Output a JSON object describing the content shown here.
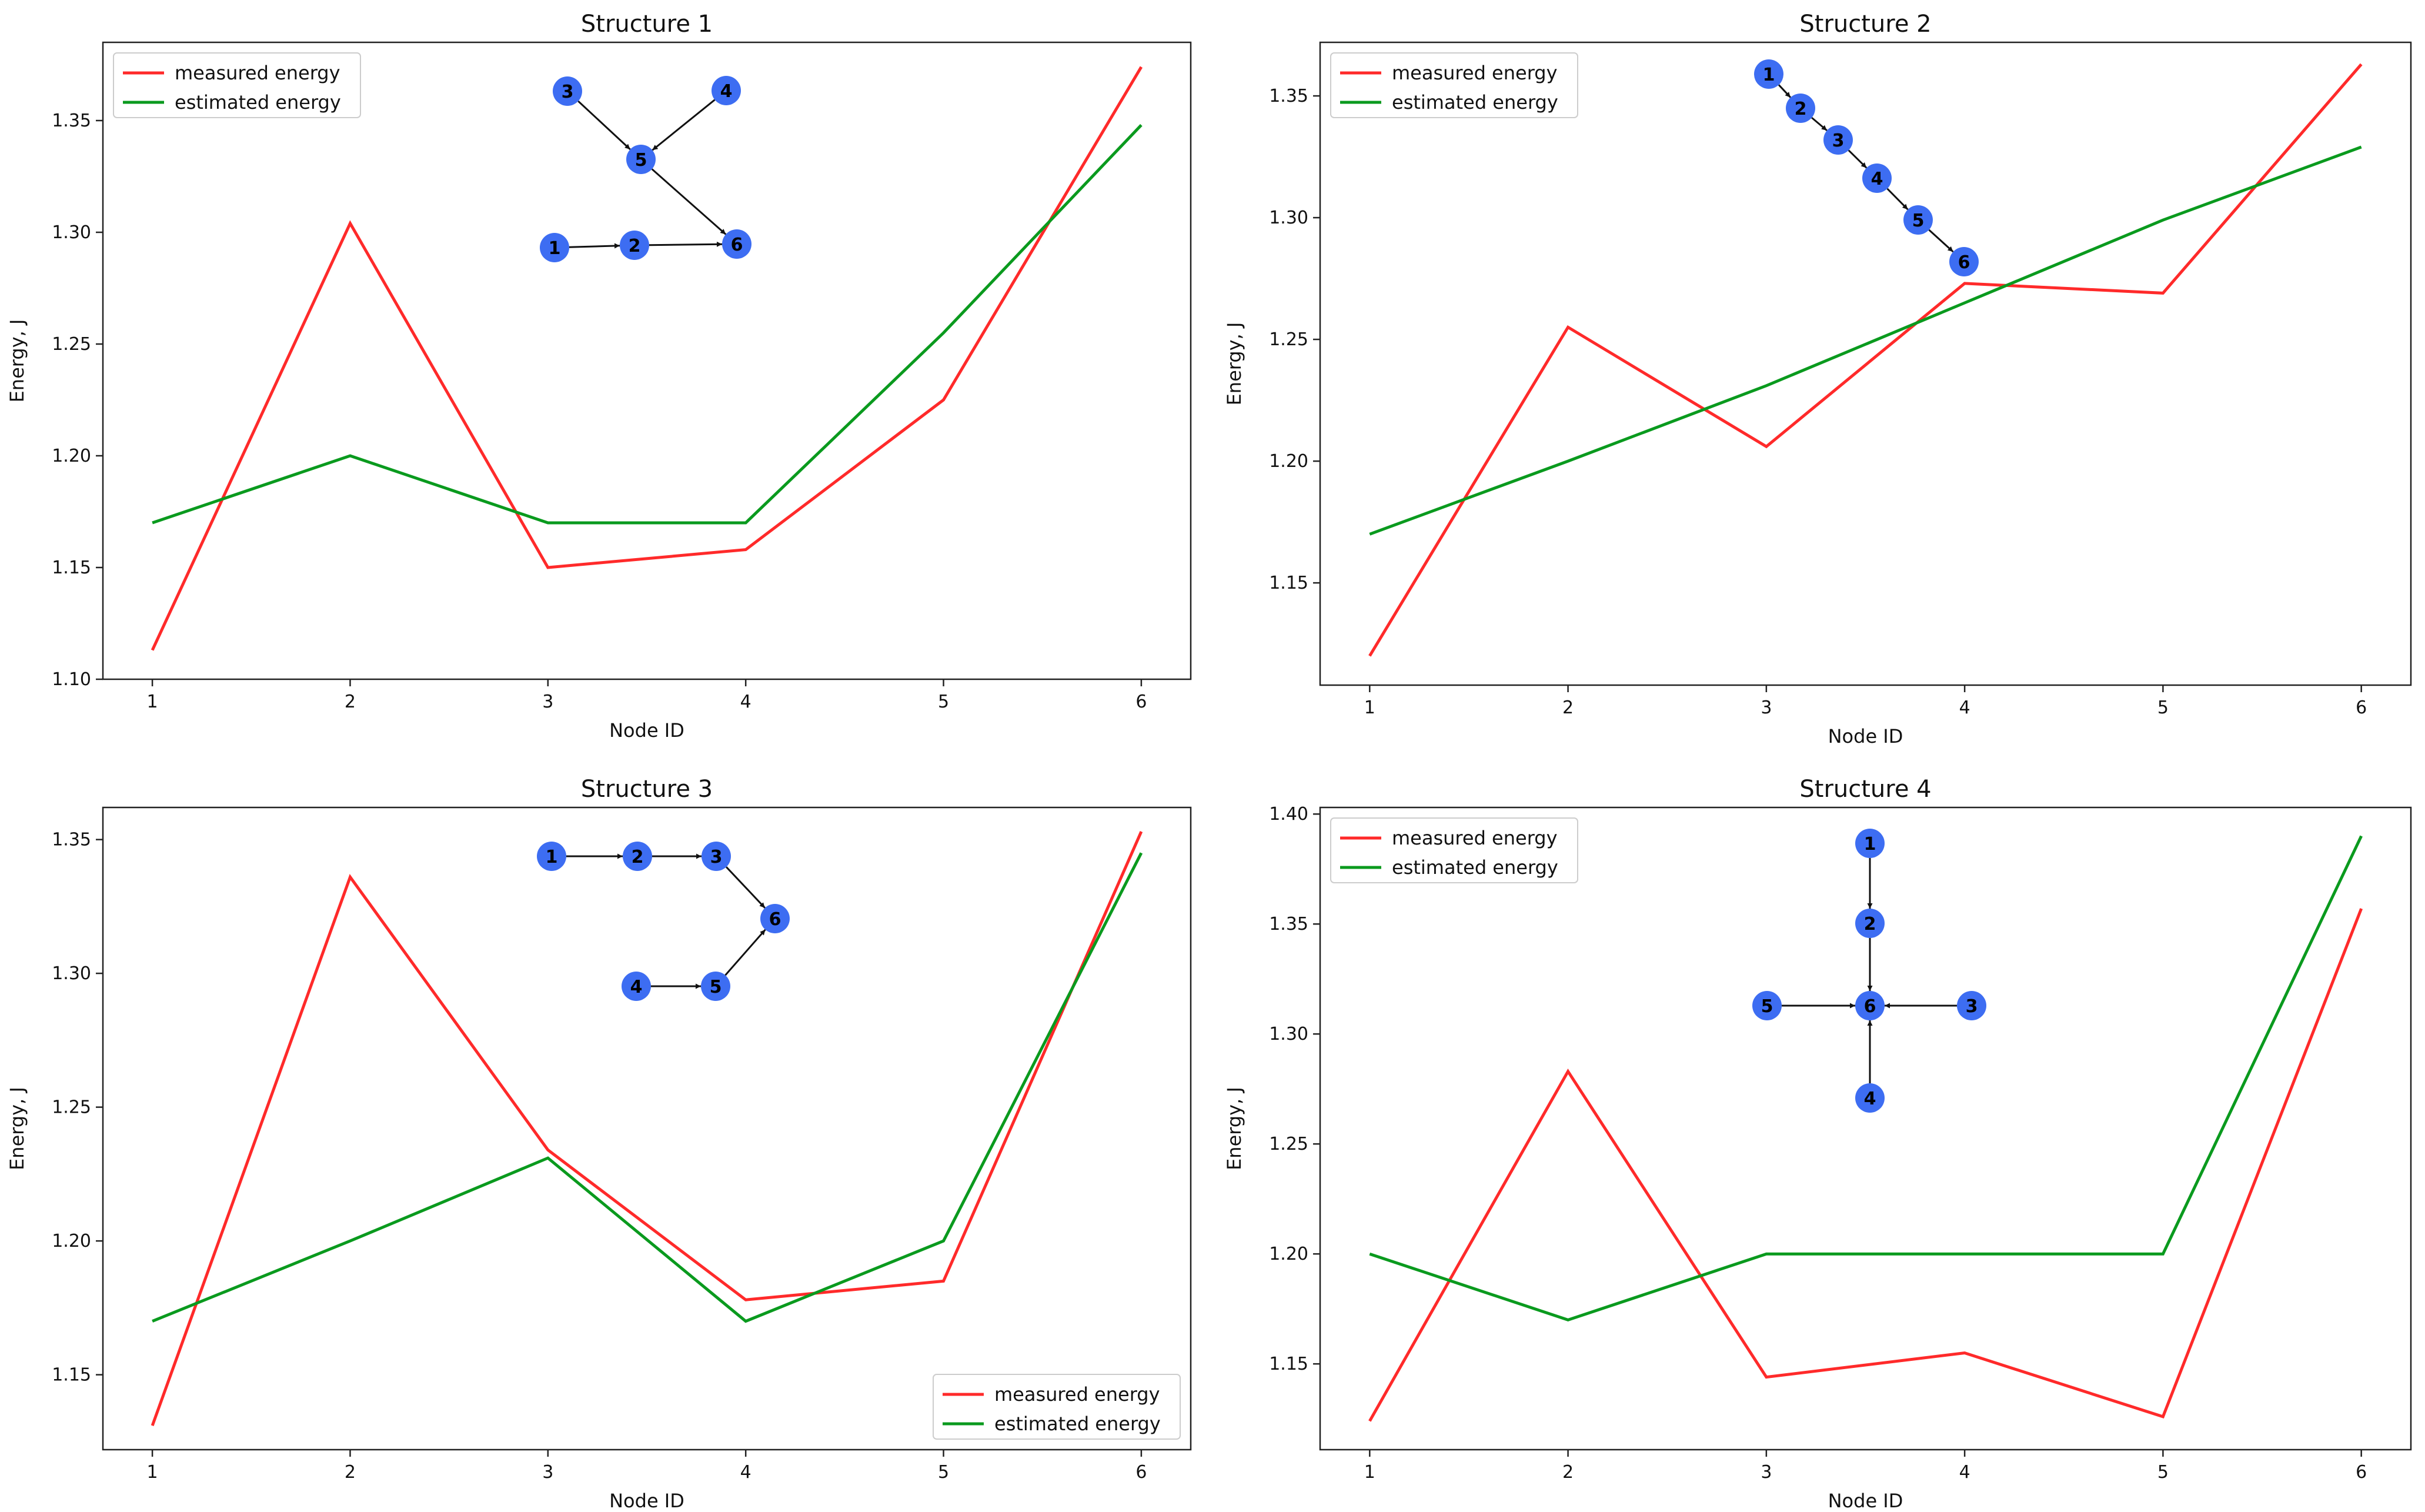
{
  "colors": {
    "measured": "#ff2a2a",
    "estimated": "#0a9a1e",
    "node": "#3d6df2",
    "edge": "#111111"
  },
  "chart_data": [
    {
      "type": "line",
      "title": "Structure 1",
      "xlabel": "Node ID",
      "ylabel": "Energy, J",
      "x": [
        1,
        2,
        3,
        4,
        5,
        6
      ],
      "ylim": [
        1.1,
        1.385
      ],
      "yticks": [
        1.1,
        1.15,
        1.2,
        1.25,
        1.3,
        1.35
      ],
      "ytick_labels": [
        "1.10",
        "1.15",
        "1.20",
        "1.25",
        "1.30",
        "1.35"
      ],
      "xtick_labels": [
        "1",
        "2",
        "3",
        "4",
        "5",
        "6"
      ],
      "legend_position": "top-left",
      "series": [
        {
          "name": "measured energy",
          "values": [
            1.113,
            1.304,
            1.15,
            1.158,
            1.225,
            1.374
          ]
        },
        {
          "name": "estimated energy",
          "values": [
            1.17,
            1.2,
            1.17,
            1.17,
            1.255,
            1.348
          ]
        }
      ],
      "inset_graph": {
        "nodes": [
          {
            "id": "1",
            "label": "1"
          },
          {
            "id": "2",
            "label": "2"
          },
          {
            "id": "3",
            "label": "3"
          },
          {
            "id": "4",
            "label": "4"
          },
          {
            "id": "5",
            "label": "5"
          },
          {
            "id": "6",
            "label": "6"
          }
        ],
        "edges": [
          [
            "3",
            "5"
          ],
          [
            "4",
            "5"
          ],
          [
            "5",
            "6"
          ],
          [
            "1",
            "2"
          ],
          [
            "2",
            "6"
          ]
        ]
      }
    },
    {
      "type": "line",
      "title": "Structure 2",
      "xlabel": "Node ID",
      "ylabel": "Energy, J",
      "x": [
        1,
        2,
        3,
        4,
        5,
        6
      ],
      "ylim": [
        1.108,
        1.372
      ],
      "yticks": [
        1.15,
        1.2,
        1.25,
        1.3,
        1.35
      ],
      "ytick_labels": [
        "1.15",
        "1.20",
        "1.25",
        "1.30",
        "1.35"
      ],
      "xtick_labels": [
        "1",
        "2",
        "3",
        "4",
        "5",
        "6"
      ],
      "legend_position": "top-left",
      "series": [
        {
          "name": "measured energy",
          "values": [
            1.12,
            1.255,
            1.206,
            1.273,
            1.269,
            1.363
          ]
        },
        {
          "name": "estimated energy",
          "values": [
            1.17,
            1.2,
            1.231,
            1.265,
            1.299,
            1.329
          ]
        }
      ],
      "inset_graph": {
        "nodes": [
          {
            "id": "1",
            "label": "1"
          },
          {
            "id": "2",
            "label": "2"
          },
          {
            "id": "3",
            "label": "3"
          },
          {
            "id": "4",
            "label": "4"
          },
          {
            "id": "5",
            "label": "5"
          },
          {
            "id": "6",
            "label": "6"
          }
        ],
        "edges": [
          [
            "1",
            "2"
          ],
          [
            "2",
            "3"
          ],
          [
            "3",
            "4"
          ],
          [
            "4",
            "5"
          ],
          [
            "5",
            "6"
          ]
        ]
      }
    },
    {
      "type": "line",
      "title": "Structure 3",
      "xlabel": "Node ID",
      "ylabel": "Energy, J",
      "x": [
        1,
        2,
        3,
        4,
        5,
        6
      ],
      "ylim": [
        1.122,
        1.362
      ],
      "yticks": [
        1.15,
        1.2,
        1.25,
        1.3,
        1.35
      ],
      "ytick_labels": [
        "1.15",
        "1.20",
        "1.25",
        "1.30",
        "1.35"
      ],
      "xtick_labels": [
        "1",
        "2",
        "3",
        "4",
        "5",
        "6"
      ],
      "legend_position": "bottom-right",
      "series": [
        {
          "name": "measured energy",
          "values": [
            1.131,
            1.336,
            1.234,
            1.178,
            1.185,
            1.353
          ]
        },
        {
          "name": "estimated energy",
          "values": [
            1.17,
            1.2,
            1.231,
            1.17,
            1.2,
            1.345
          ]
        }
      ],
      "inset_graph": {
        "nodes": [
          {
            "id": "1",
            "label": "1"
          },
          {
            "id": "2",
            "label": "2"
          },
          {
            "id": "3",
            "label": "3"
          },
          {
            "id": "4",
            "label": "4"
          },
          {
            "id": "5",
            "label": "5"
          },
          {
            "id": "6",
            "label": "6"
          }
        ],
        "edges": [
          [
            "1",
            "2"
          ],
          [
            "2",
            "3"
          ],
          [
            "3",
            "6"
          ],
          [
            "4",
            "5"
          ],
          [
            "5",
            "6"
          ]
        ]
      }
    },
    {
      "type": "line",
      "title": "Structure 4",
      "xlabel": "Node ID",
      "ylabel": "Energy, J",
      "x": [
        1,
        2,
        3,
        4,
        5,
        6
      ],
      "ylim": [
        1.111,
        1.403
      ],
      "yticks": [
        1.15,
        1.2,
        1.25,
        1.3,
        1.35,
        1.4
      ],
      "ytick_labels": [
        "1.15",
        "1.20",
        "1.25",
        "1.30",
        "1.35",
        "1.40"
      ],
      "xtick_labels": [
        "1",
        "2",
        "3",
        "4",
        "5",
        "6"
      ],
      "legend_position": "top-left",
      "series": [
        {
          "name": "measured energy",
          "values": [
            1.124,
            1.283,
            1.144,
            1.155,
            1.126,
            1.357
          ]
        },
        {
          "name": "estimated energy",
          "values": [
            1.2,
            1.17,
            1.2,
            1.2,
            1.2,
            1.39
          ]
        }
      ],
      "inset_graph": {
        "nodes": [
          {
            "id": "1",
            "label": "1"
          },
          {
            "id": "2",
            "label": "2"
          },
          {
            "id": "3",
            "label": "3"
          },
          {
            "id": "4",
            "label": "4"
          },
          {
            "id": "5",
            "label": "5"
          },
          {
            "id": "6",
            "label": "6"
          }
        ],
        "edges": [
          [
            "1",
            "2"
          ],
          [
            "2",
            "6"
          ],
          [
            "3",
            "6"
          ],
          [
            "5",
            "6"
          ],
          [
            "4",
            "6"
          ]
        ]
      }
    }
  ]
}
